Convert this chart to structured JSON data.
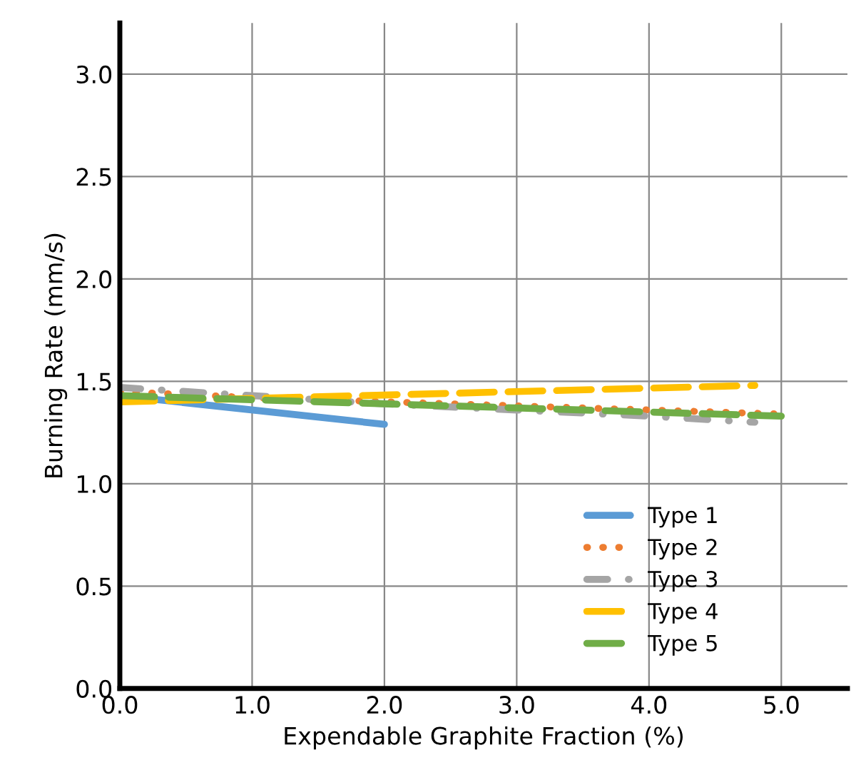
{
  "chart_data": {
    "type": "line",
    "xlabel": "Expendable Graphite Fraction (%)",
    "ylabel": "Burning Rate (mm/s)",
    "xlim": [
      0,
      5.5
    ],
    "ylim": [
      0,
      3.25
    ],
    "xticks": [
      {
        "value": 0,
        "label": "0.0"
      },
      {
        "value": 1,
        "label": "1.0"
      },
      {
        "value": 2,
        "label": "2.0"
      },
      {
        "value": 3,
        "label": "3.0"
      },
      {
        "value": 4,
        "label": "4.0"
      },
      {
        "value": 5,
        "label": "5.0"
      }
    ],
    "yticks": [
      {
        "value": 0,
        "label": "0.0"
      },
      {
        "value": 0.5,
        "label": "0.5"
      },
      {
        "value": 1,
        "label": "1.0"
      },
      {
        "value": 1.5,
        "label": "1.5"
      },
      {
        "value": 2,
        "label": "2.0"
      },
      {
        "value": 2.5,
        "label": "2.5"
      },
      {
        "value": 3,
        "label": "3.0"
      }
    ],
    "grid": true,
    "legend": "bottom right",
    "series": [
      {
        "name": "Type 1",
        "color": "#5b9bd5",
        "line_style": "solid",
        "x": [
          0,
          2.0
        ],
        "values": [
          1.43,
          1.29
        ]
      },
      {
        "name": "Type 2",
        "color": "#ed7d31",
        "line_style": "dotted",
        "x": [
          0,
          1,
          2,
          3,
          4,
          5
        ],
        "values": [
          1.45,
          1.42,
          1.4,
          1.38,
          1.36,
          1.34
        ]
      },
      {
        "name": "Type 3",
        "color": "#a5a5a5",
        "line_style": "dashdot",
        "x": [
          0,
          1,
          2,
          3,
          4,
          4.8
        ],
        "values": [
          1.47,
          1.43,
          1.39,
          1.36,
          1.33,
          1.3
        ]
      },
      {
        "name": "Type 4",
        "color": "#ffc000",
        "line_style": "dashed",
        "x": [
          0,
          4.8
        ],
        "values": [
          1.4,
          1.48
        ]
      },
      {
        "name": "Type 5",
        "color": "#70ad47",
        "line_style": "dashed",
        "x": [
          0,
          1,
          2,
          3,
          4,
          5
        ],
        "values": [
          1.43,
          1.41,
          1.39,
          1.37,
          1.35,
          1.33
        ]
      }
    ]
  }
}
